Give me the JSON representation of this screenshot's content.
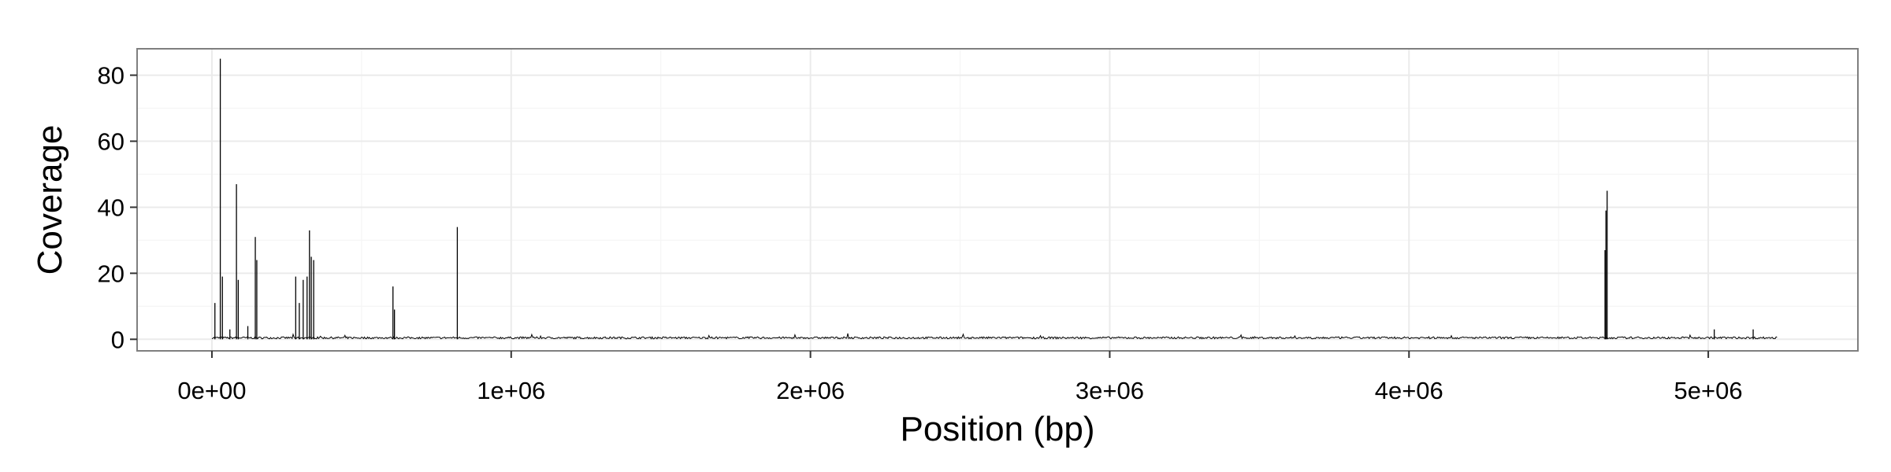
{
  "chart_data": {
    "type": "line",
    "title": "",
    "xlabel": "Position (bp)",
    "ylabel": "Coverage",
    "xlim": [
      -250000,
      5500000
    ],
    "ylim": [
      -3.5,
      88
    ],
    "x_ticks": [
      0,
      1000000,
      2000000,
      3000000,
      4000000,
      5000000
    ],
    "x_tick_labels": [
      "0e+00",
      "1e+06",
      "2e+06",
      "3e+06",
      "4e+06",
      "5e+06"
    ],
    "y_ticks": [
      0,
      20,
      40,
      60,
      80
    ],
    "y_tick_labels": [
      "0",
      "20",
      "40",
      "60",
      "80"
    ],
    "grid": true,
    "legend": "none",
    "colors": {
      "line": "#000000",
      "panel_border": "#7f7f7f",
      "grid_major": "#ebebeb",
      "grid_minor": "#f5f5f5"
    },
    "baseline": {
      "x_start": 0,
      "x_end": 5230000,
      "typical_value": 0.5
    },
    "spikes": [
      {
        "x": 10000,
        "y": 11
      },
      {
        "x": 28000,
        "y": 85
      },
      {
        "x": 35000,
        "y": 19
      },
      {
        "x": 60000,
        "y": 3
      },
      {
        "x": 82000,
        "y": 47
      },
      {
        "x": 88000,
        "y": 18
      },
      {
        "x": 120000,
        "y": 4
      },
      {
        "x": 145000,
        "y": 31
      },
      {
        "x": 150000,
        "y": 24
      },
      {
        "x": 280000,
        "y": 19
      },
      {
        "x": 292000,
        "y": 11
      },
      {
        "x": 305000,
        "y": 18
      },
      {
        "x": 318000,
        "y": 19
      },
      {
        "x": 326000,
        "y": 33
      },
      {
        "x": 332000,
        "y": 25
      },
      {
        "x": 340000,
        "y": 24
      },
      {
        "x": 605000,
        "y": 16
      },
      {
        "x": 610000,
        "y": 9
      },
      {
        "x": 820000,
        "y": 34
      },
      {
        "x": 4655000,
        "y": 27
      },
      {
        "x": 4658000,
        "y": 39
      },
      {
        "x": 4662000,
        "y": 45
      },
      {
        "x": 5020000,
        "y": 3
      },
      {
        "x": 5150000,
        "y": 3
      }
    ]
  }
}
